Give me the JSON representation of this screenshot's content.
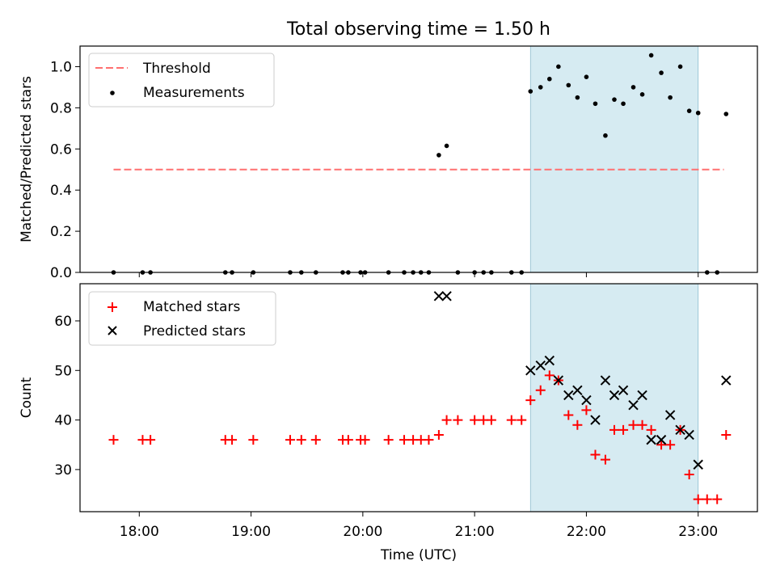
{
  "figure": {
    "title": "Total observing time = 1.50 h",
    "xlabel": "Time (UTC)",
    "xticks": [
      {
        "t": 18.0,
        "label": "18:00"
      },
      {
        "t": 19.0,
        "label": "19:00"
      },
      {
        "t": 20.0,
        "label": "20:00"
      },
      {
        "t": 21.0,
        "label": "21:00"
      },
      {
        "t": 22.0,
        "label": "22:00"
      },
      {
        "t": 23.0,
        "label": "23:00"
      }
    ],
    "xlim": [
      17.47,
      23.53
    ],
    "shaded_span": [
      21.5,
      23.0
    ],
    "colors": {
      "threshold": "#ff7070",
      "measurement": "#000000",
      "matched": "#ff0000",
      "predicted": "#000000",
      "span": "#add8e6"
    }
  },
  "chart_data": [
    {
      "type": "scatter",
      "ylabel": "Matched/Predicted stars",
      "ylim": [
        0,
        1.1
      ],
      "yticks": [
        "0.0",
        "0.2",
        "0.4",
        "0.6",
        "0.8",
        "1.0"
      ],
      "legend_position": "top-left",
      "threshold": {
        "name": "Threshold",
        "value": 0.5,
        "x_range": [
          17.77,
          23.23
        ]
      },
      "series": [
        {
          "name": "Measurements",
          "points": [
            [
              17.77,
              0
            ],
            [
              18.03,
              0
            ],
            [
              18.1,
              0
            ],
            [
              18.77,
              0
            ],
            [
              18.83,
              0
            ],
            [
              19.02,
              0
            ],
            [
              19.35,
              0
            ],
            [
              19.45,
              0
            ],
            [
              19.58,
              0
            ],
            [
              19.82,
              0
            ],
            [
              19.87,
              0
            ],
            [
              19.98,
              0
            ],
            [
              20.02,
              0
            ],
            [
              20.23,
              0
            ],
            [
              20.37,
              0
            ],
            [
              20.45,
              0
            ],
            [
              20.52,
              0
            ],
            [
              20.59,
              0
            ],
            [
              20.68,
              0.57
            ],
            [
              20.75,
              0.615
            ],
            [
              20.85,
              0
            ],
            [
              21.0,
              0
            ],
            [
              21.08,
              0
            ],
            [
              21.15,
              0
            ],
            [
              21.33,
              0
            ],
            [
              21.42,
              0
            ],
            [
              21.5,
              0.88
            ],
            [
              21.59,
              0.9
            ],
            [
              21.67,
              0.94
            ],
            [
              21.75,
              1.0
            ],
            [
              21.84,
              0.91
            ],
            [
              21.92,
              0.85
            ],
            [
              22.0,
              0.95
            ],
            [
              22.08,
              0.82
            ],
            [
              22.17,
              0.665
            ],
            [
              22.25,
              0.84
            ],
            [
              22.33,
              0.82
            ],
            [
              22.42,
              0.9
            ],
            [
              22.5,
              0.865
            ],
            [
              22.58,
              1.055
            ],
            [
              22.67,
              0.97
            ],
            [
              22.75,
              0.85
            ],
            [
              22.84,
              1.0
            ],
            [
              22.92,
              0.785
            ],
            [
              23.0,
              0.775
            ],
            [
              23.08,
              0
            ],
            [
              23.17,
              0
            ],
            [
              23.25,
              0.77
            ]
          ]
        }
      ]
    },
    {
      "type": "scatter",
      "ylabel": "Count",
      "ylim": [
        21.5,
        67.5
      ],
      "yticks": [
        "30",
        "40",
        "50",
        "60"
      ],
      "legend_position": "top-left",
      "series": [
        {
          "name": "Matched stars",
          "marker": "plus",
          "points": [
            [
              17.77,
              36
            ],
            [
              18.03,
              36
            ],
            [
              18.1,
              36
            ],
            [
              18.77,
              36
            ],
            [
              18.83,
              36
            ],
            [
              19.02,
              36
            ],
            [
              19.35,
              36
            ],
            [
              19.45,
              36
            ],
            [
              19.58,
              36
            ],
            [
              19.82,
              36
            ],
            [
              19.87,
              36
            ],
            [
              19.98,
              36
            ],
            [
              20.02,
              36
            ],
            [
              20.23,
              36
            ],
            [
              20.37,
              36
            ],
            [
              20.45,
              36
            ],
            [
              20.52,
              36
            ],
            [
              20.59,
              36
            ],
            [
              20.68,
              37
            ],
            [
              20.75,
              40
            ],
            [
              20.85,
              40
            ],
            [
              21.0,
              40
            ],
            [
              21.08,
              40
            ],
            [
              21.15,
              40
            ],
            [
              21.33,
              40
            ],
            [
              21.42,
              40
            ],
            [
              21.5,
              44
            ],
            [
              21.59,
              46
            ],
            [
              21.67,
              49
            ],
            [
              21.75,
              48
            ],
            [
              21.84,
              41
            ],
            [
              21.92,
              39
            ],
            [
              22.0,
              42
            ],
            [
              22.08,
              33
            ],
            [
              22.17,
              32
            ],
            [
              22.25,
              38
            ],
            [
              22.33,
              38
            ],
            [
              22.42,
              39
            ],
            [
              22.5,
              39
            ],
            [
              22.58,
              38
            ],
            [
              22.67,
              35
            ],
            [
              22.75,
              35
            ],
            [
              22.84,
              38
            ],
            [
              22.92,
              29
            ],
            [
              23.0,
              24
            ],
            [
              23.08,
              24
            ],
            [
              23.17,
              24
            ],
            [
              23.25,
              37
            ]
          ]
        },
        {
          "name": "Predicted stars",
          "marker": "x",
          "points": [
            [
              20.68,
              65
            ],
            [
              20.75,
              65
            ],
            [
              21.5,
              50
            ],
            [
              21.59,
              51
            ],
            [
              21.67,
              52
            ],
            [
              21.75,
              48
            ],
            [
              21.84,
              45
            ],
            [
              21.92,
              46
            ],
            [
              22.0,
              44
            ],
            [
              22.08,
              40
            ],
            [
              22.17,
              48
            ],
            [
              22.25,
              45
            ],
            [
              22.33,
              46
            ],
            [
              22.42,
              43
            ],
            [
              22.5,
              45
            ],
            [
              22.58,
              36
            ],
            [
              22.67,
              36
            ],
            [
              22.75,
              41
            ],
            [
              22.84,
              38
            ],
            [
              22.92,
              37
            ],
            [
              23.0,
              31
            ],
            [
              23.25,
              48
            ]
          ]
        }
      ]
    }
  ]
}
